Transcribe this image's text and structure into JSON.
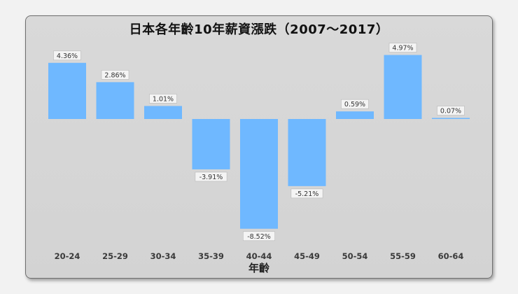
{
  "chart_data": {
    "type": "bar",
    "title": "日本各年齡10年薪資漲跌（2007～2017）",
    "xlabel": "年齡",
    "ylabel": "",
    "categories": [
      "20-24",
      "25-29",
      "30-34",
      "35-39",
      "40-44",
      "45-49",
      "50-54",
      "55-59",
      "60-64"
    ],
    "values": [
      4.36,
      2.86,
      1.01,
      -3.91,
      -8.52,
      -5.21,
      0.59,
      4.97,
      0.07
    ],
    "data_labels": [
      "4.36%",
      "2.86%",
      "1.01%",
      "-3.91%",
      "-8.52%",
      "-5.21%",
      "0.59%",
      "4.97%",
      "0.07%"
    ],
    "unit": "%",
    "ylim": [
      -8.52,
      4.97
    ],
    "grid": false,
    "legend": "none",
    "colors": {
      "bar": "#6fb8ff",
      "panel": "#d6d6d6",
      "label_box": "#f4f4f4"
    }
  }
}
